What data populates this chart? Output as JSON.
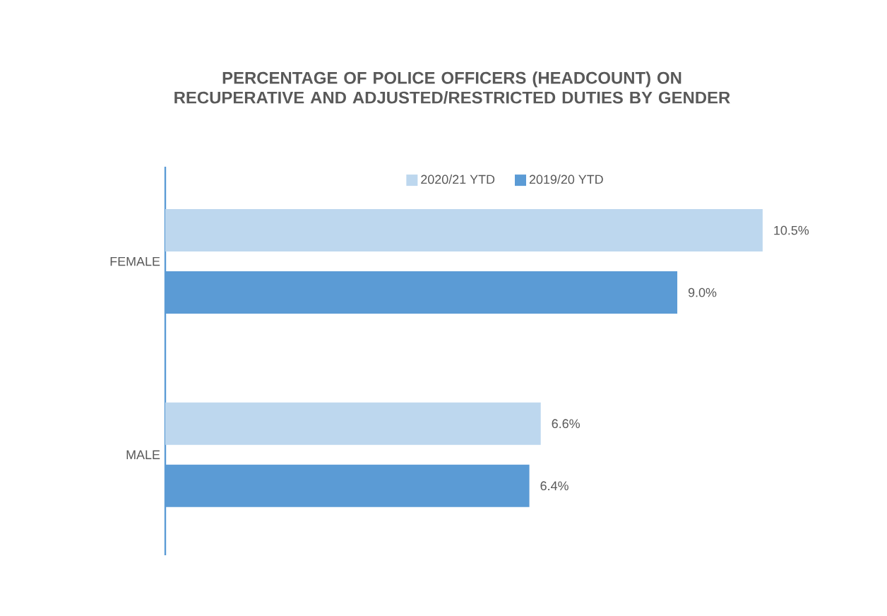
{
  "chart_data": {
    "type": "bar",
    "orientation": "horizontal",
    "title": "PERCENTAGE OF POLICE OFFICERS (HEADCOUNT) ON RECUPERATIVE AND ADJUSTED/RESTRICTED DUTIES BY GENDER",
    "categories": [
      "FEMALE",
      "MALE"
    ],
    "series": [
      {
        "name": "2020/21 YTD",
        "color": "#bdd7ee",
        "values": [
          10.5,
          6.6
        ],
        "value_labels": [
          "10.5%",
          "6.6%"
        ]
      },
      {
        "name": "2019/20 YTD",
        "color": "#5b9bd5",
        "values": [
          9.0,
          6.4
        ],
        "value_labels": [
          "9.0%",
          "6.4%"
        ]
      }
    ],
    "legend": "top"
  }
}
